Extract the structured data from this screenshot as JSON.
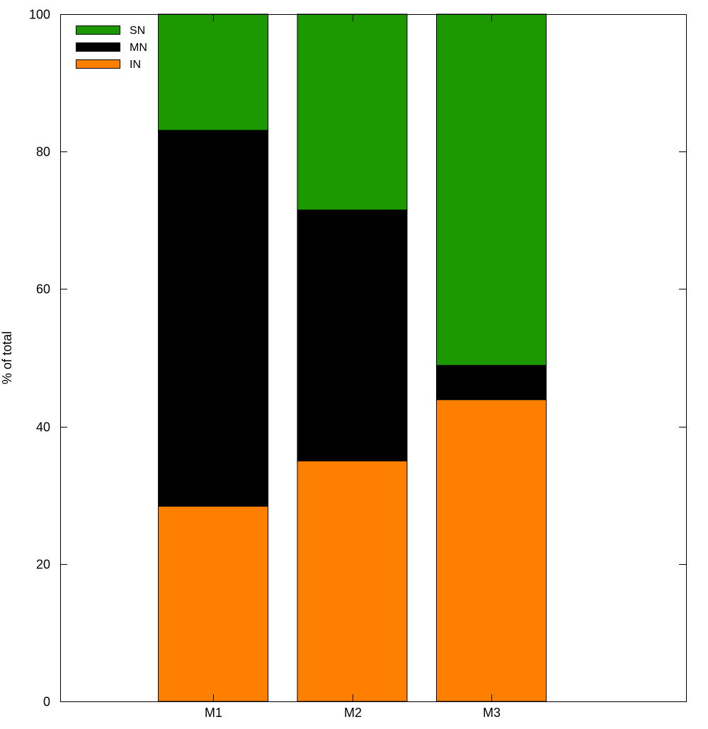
{
  "chart_data": {
    "type": "bar",
    "stacked": true,
    "categories": [
      "M1",
      "M2",
      "M3"
    ],
    "series": [
      {
        "name": "IN",
        "color": "#ff8000",
        "values": [
          28.4,
          35.0,
          43.9
        ]
      },
      {
        "name": "MN",
        "color": "#000000",
        "values": [
          54.7,
          36.5,
          5.0
        ]
      },
      {
        "name": "SN",
        "color": "#1c9900",
        "values": [
          16.9,
          28.5,
          51.1
        ]
      }
    ],
    "legend_order": [
      "SN",
      "MN",
      "IN"
    ],
    "legend_position": "top-left",
    "ylabel": "% of total",
    "xlabel": "",
    "ylim": [
      0,
      100
    ],
    "yticks": [
      0,
      20,
      40,
      60,
      80,
      100
    ],
    "grid": false
  }
}
